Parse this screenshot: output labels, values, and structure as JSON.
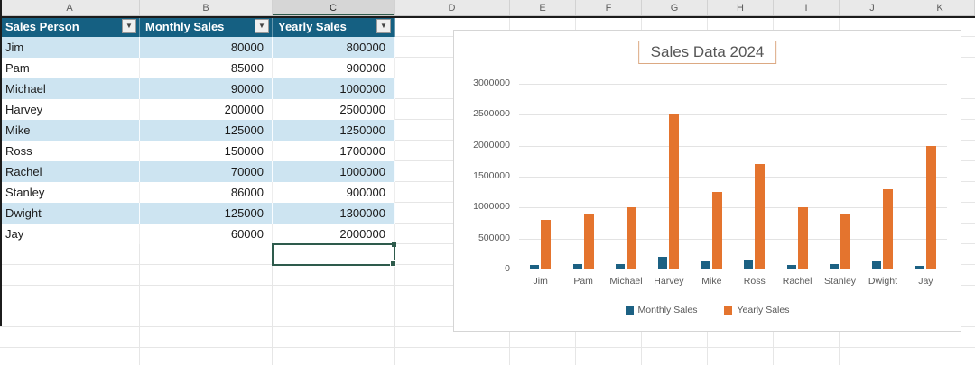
{
  "sheet": {
    "column_letters": [
      "A",
      "B",
      "C",
      "D",
      "E",
      "F",
      "G",
      "H",
      "I",
      "J",
      "K"
    ],
    "selected_column_letter": "C"
  },
  "table": {
    "header": [
      "Sales Person",
      "Monthly Sales",
      "Yearly Sales"
    ],
    "filter_icon": "▼",
    "rows": [
      [
        "Jim",
        "80000",
        "800000"
      ],
      [
        "Pam",
        "85000",
        "900000"
      ],
      [
        "Michael",
        "90000",
        "1000000"
      ],
      [
        "Harvey",
        "200000",
        "2500000"
      ],
      [
        "Mike",
        "125000",
        "1250000"
      ],
      [
        "Ross",
        "150000",
        "1700000"
      ],
      [
        "Rachel",
        "70000",
        "1000000"
      ],
      [
        "Stanley",
        "86000",
        "900000"
      ],
      [
        "Dwight",
        "125000",
        "1300000"
      ],
      [
        "Jay",
        "60000",
        "2000000"
      ]
    ]
  },
  "chart": {
    "title": "Sales Data 2024"
  },
  "chart_data": {
    "type": "bar",
    "title": "Sales Data 2024",
    "categories": [
      "Jim",
      "Pam",
      "Michael",
      "Harvey",
      "Mike",
      "Ross",
      "Rachel",
      "Stanley",
      "Dwight",
      "Jay"
    ],
    "series": [
      {
        "name": "Monthly Sales",
        "color": "#1C6183",
        "values": [
          80000,
          85000,
          90000,
          200000,
          125000,
          150000,
          70000,
          86000,
          125000,
          60000
        ]
      },
      {
        "name": "Yearly Sales",
        "color": "#E4742E",
        "values": [
          800000,
          900000,
          1000000,
          2500000,
          1250000,
          1700000,
          1000000,
          900000,
          1300000,
          2000000
        ]
      }
    ],
    "xlabel": "",
    "ylabel": "",
    "ylim": [
      0,
      3000000
    ],
    "yticks": [
      0,
      500000,
      1000000,
      1500000,
      2000000,
      2500000,
      3000000
    ],
    "grid": true,
    "legend_position": "bottom"
  },
  "colors": {
    "table_header_bg": "#156082",
    "band_row_bg": "#CDE4F1",
    "monthly_sales": "#1C6183",
    "yearly_sales": "#E4742E",
    "selection_border": "#2E5B4C",
    "chart_title_border": "#DCA983"
  }
}
